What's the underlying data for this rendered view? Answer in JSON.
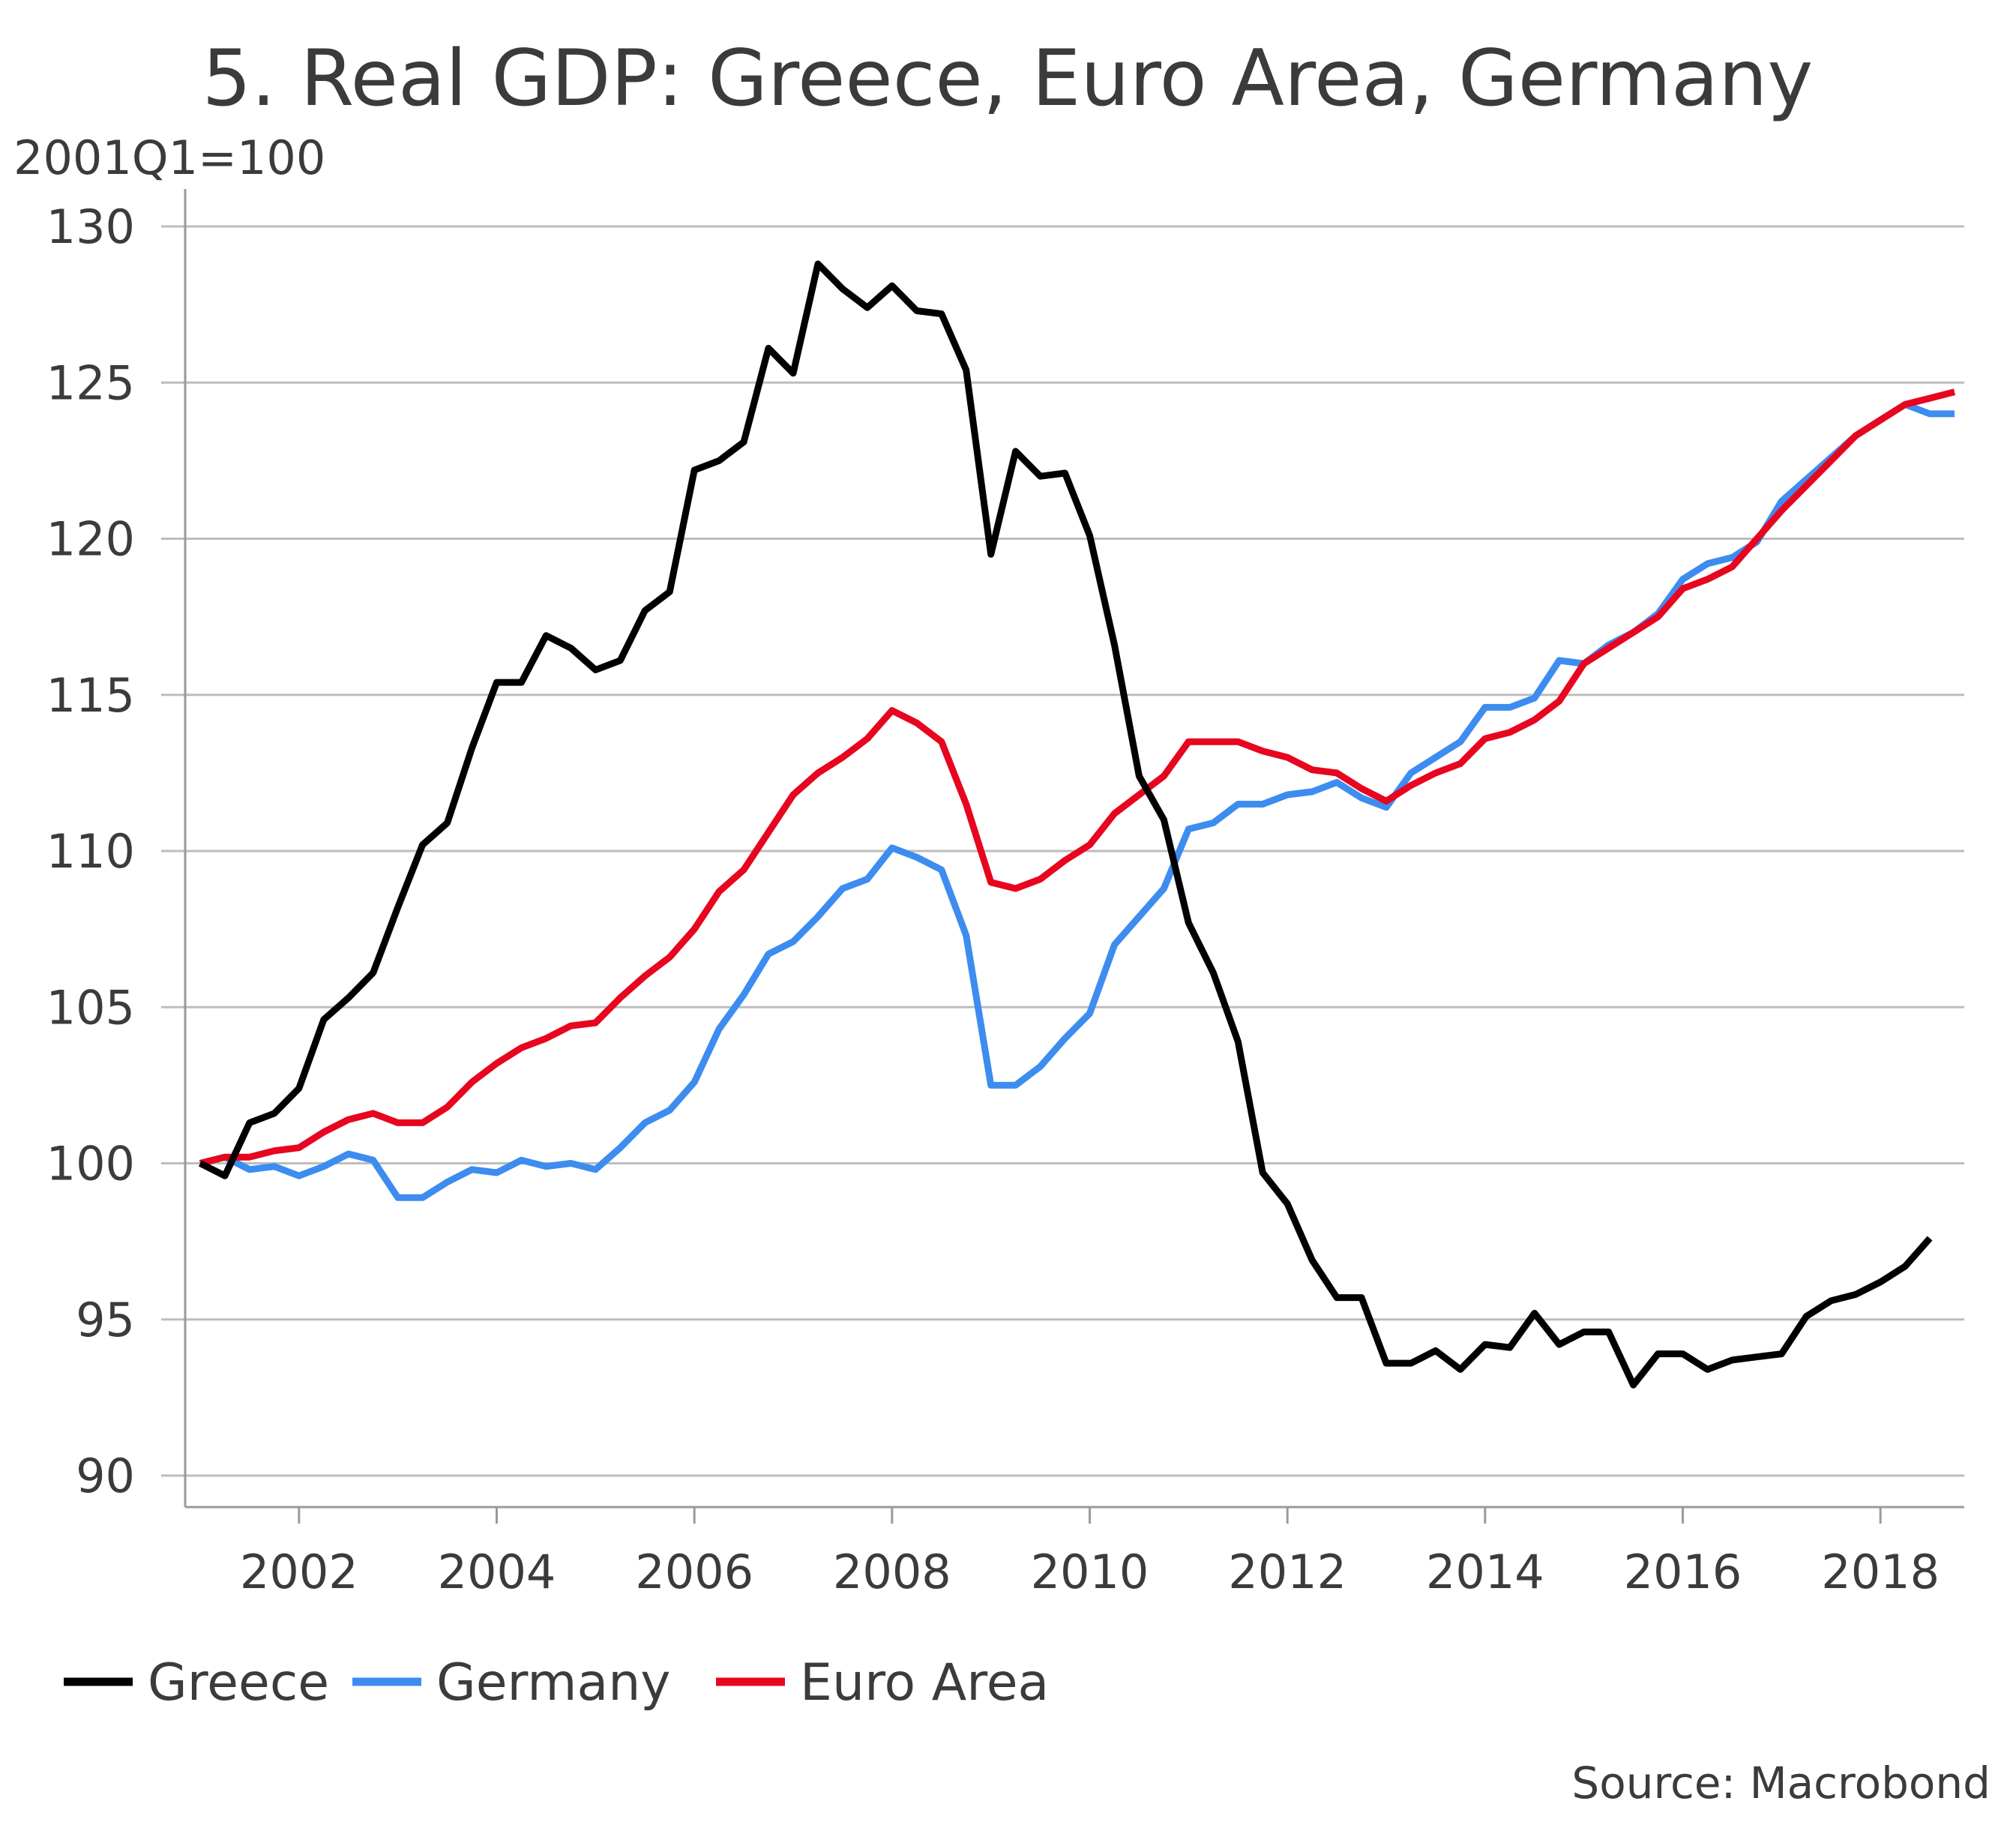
{
  "chart_data": {
    "type": "line",
    "title": "5. Real GDP: Greece, Euro Area, Germany",
    "unit_label": "2001Q1=100",
    "x_start": 2001.0,
    "x_step": 0.25,
    "xlim": [
      2001.0,
      2019.0
    ],
    "ylim": [
      90,
      130
    ],
    "y_ticks": [
      90,
      95,
      100,
      105,
      110,
      115,
      120,
      125,
      130
    ],
    "x_ticks": [
      2002,
      2004,
      2006,
      2008,
      2010,
      2012,
      2014,
      2016,
      2018
    ],
    "grid": "horizontal",
    "legend_position": "bottom-left",
    "series": [
      {
        "name": "Greece",
        "color": "#000000",
        "values": [
          100.0,
          99.6,
          101.3,
          101.6,
          102.4,
          104.6,
          105.3,
          106.1,
          108.2,
          110.2,
          110.9,
          113.3,
          115.4,
          115.4,
          116.9,
          116.5,
          115.8,
          116.1,
          117.7,
          118.3,
          122.2,
          122.5,
          123.1,
          126.1,
          125.3,
          128.8,
          128.0,
          127.4,
          128.1,
          127.3,
          127.2,
          125.4,
          119.5,
          122.8,
          122.0,
          122.1,
          120.1,
          116.6,
          112.4,
          111.0,
          107.7,
          106.1,
          103.9,
          99.7,
          98.7,
          96.9,
          95.7,
          95.7,
          93.6,
          93.6,
          94.0,
          93.4,
          94.2,
          94.1,
          95.2,
          94.2,
          94.6,
          94.6,
          92.9,
          93.9,
          93.9,
          93.4,
          93.7,
          93.8,
          93.9,
          95.1,
          95.6,
          95.8,
          96.2,
          96.7,
          97.6
        ]
      },
      {
        "name": "Germany",
        "color": "#3d8cf0",
        "values": [
          100.0,
          100.2,
          99.8,
          99.9,
          99.6,
          99.9,
          100.3,
          100.1,
          98.9,
          98.9,
          99.4,
          99.8,
          99.7,
          100.1,
          99.9,
          100.0,
          99.8,
          100.5,
          101.3,
          101.7,
          102.6,
          104.3,
          105.4,
          106.7,
          107.1,
          107.9,
          108.8,
          109.1,
          110.1,
          109.8,
          109.4,
          107.3,
          102.5,
          102.5,
          103.1,
          104.0,
          104.8,
          107.0,
          107.9,
          108.8,
          110.7,
          110.9,
          111.5,
          111.5,
          111.8,
          111.9,
          112.2,
          111.7,
          111.4,
          112.5,
          113.0,
          113.5,
          114.6,
          114.6,
          114.9,
          116.1,
          116.0,
          116.6,
          117.0,
          117.6,
          118.7,
          119.2,
          119.4,
          119.9,
          121.2,
          121.9,
          122.6,
          123.3,
          123.8,
          124.3,
          124.0,
          124.0
        ]
      },
      {
        "name": "Euro Area",
        "color": "#e8051f",
        "values": [
          100.0,
          100.2,
          100.2,
          100.4,
          100.5,
          101.0,
          101.4,
          101.6,
          101.3,
          101.3,
          101.8,
          102.6,
          103.2,
          103.7,
          104.0,
          104.4,
          104.5,
          105.3,
          106.0,
          106.6,
          107.5,
          108.7,
          109.4,
          110.6,
          111.8,
          112.5,
          113.0,
          113.6,
          114.5,
          114.1,
          113.5,
          111.5,
          109.0,
          108.8,
          109.1,
          109.7,
          110.2,
          111.2,
          111.8,
          112.4,
          113.5,
          113.5,
          113.5,
          113.2,
          113.0,
          112.6,
          112.5,
          112.0,
          111.6,
          112.1,
          112.5,
          112.8,
          113.6,
          113.8,
          114.2,
          114.8,
          116.0,
          116.5,
          117.0,
          117.5,
          118.4,
          118.7,
          119.1,
          120.0,
          120.9,
          121.7,
          122.5,
          123.3,
          123.8,
          124.3,
          124.5,
          124.7
        ]
      }
    ],
    "source": "Source: Macrobond"
  }
}
